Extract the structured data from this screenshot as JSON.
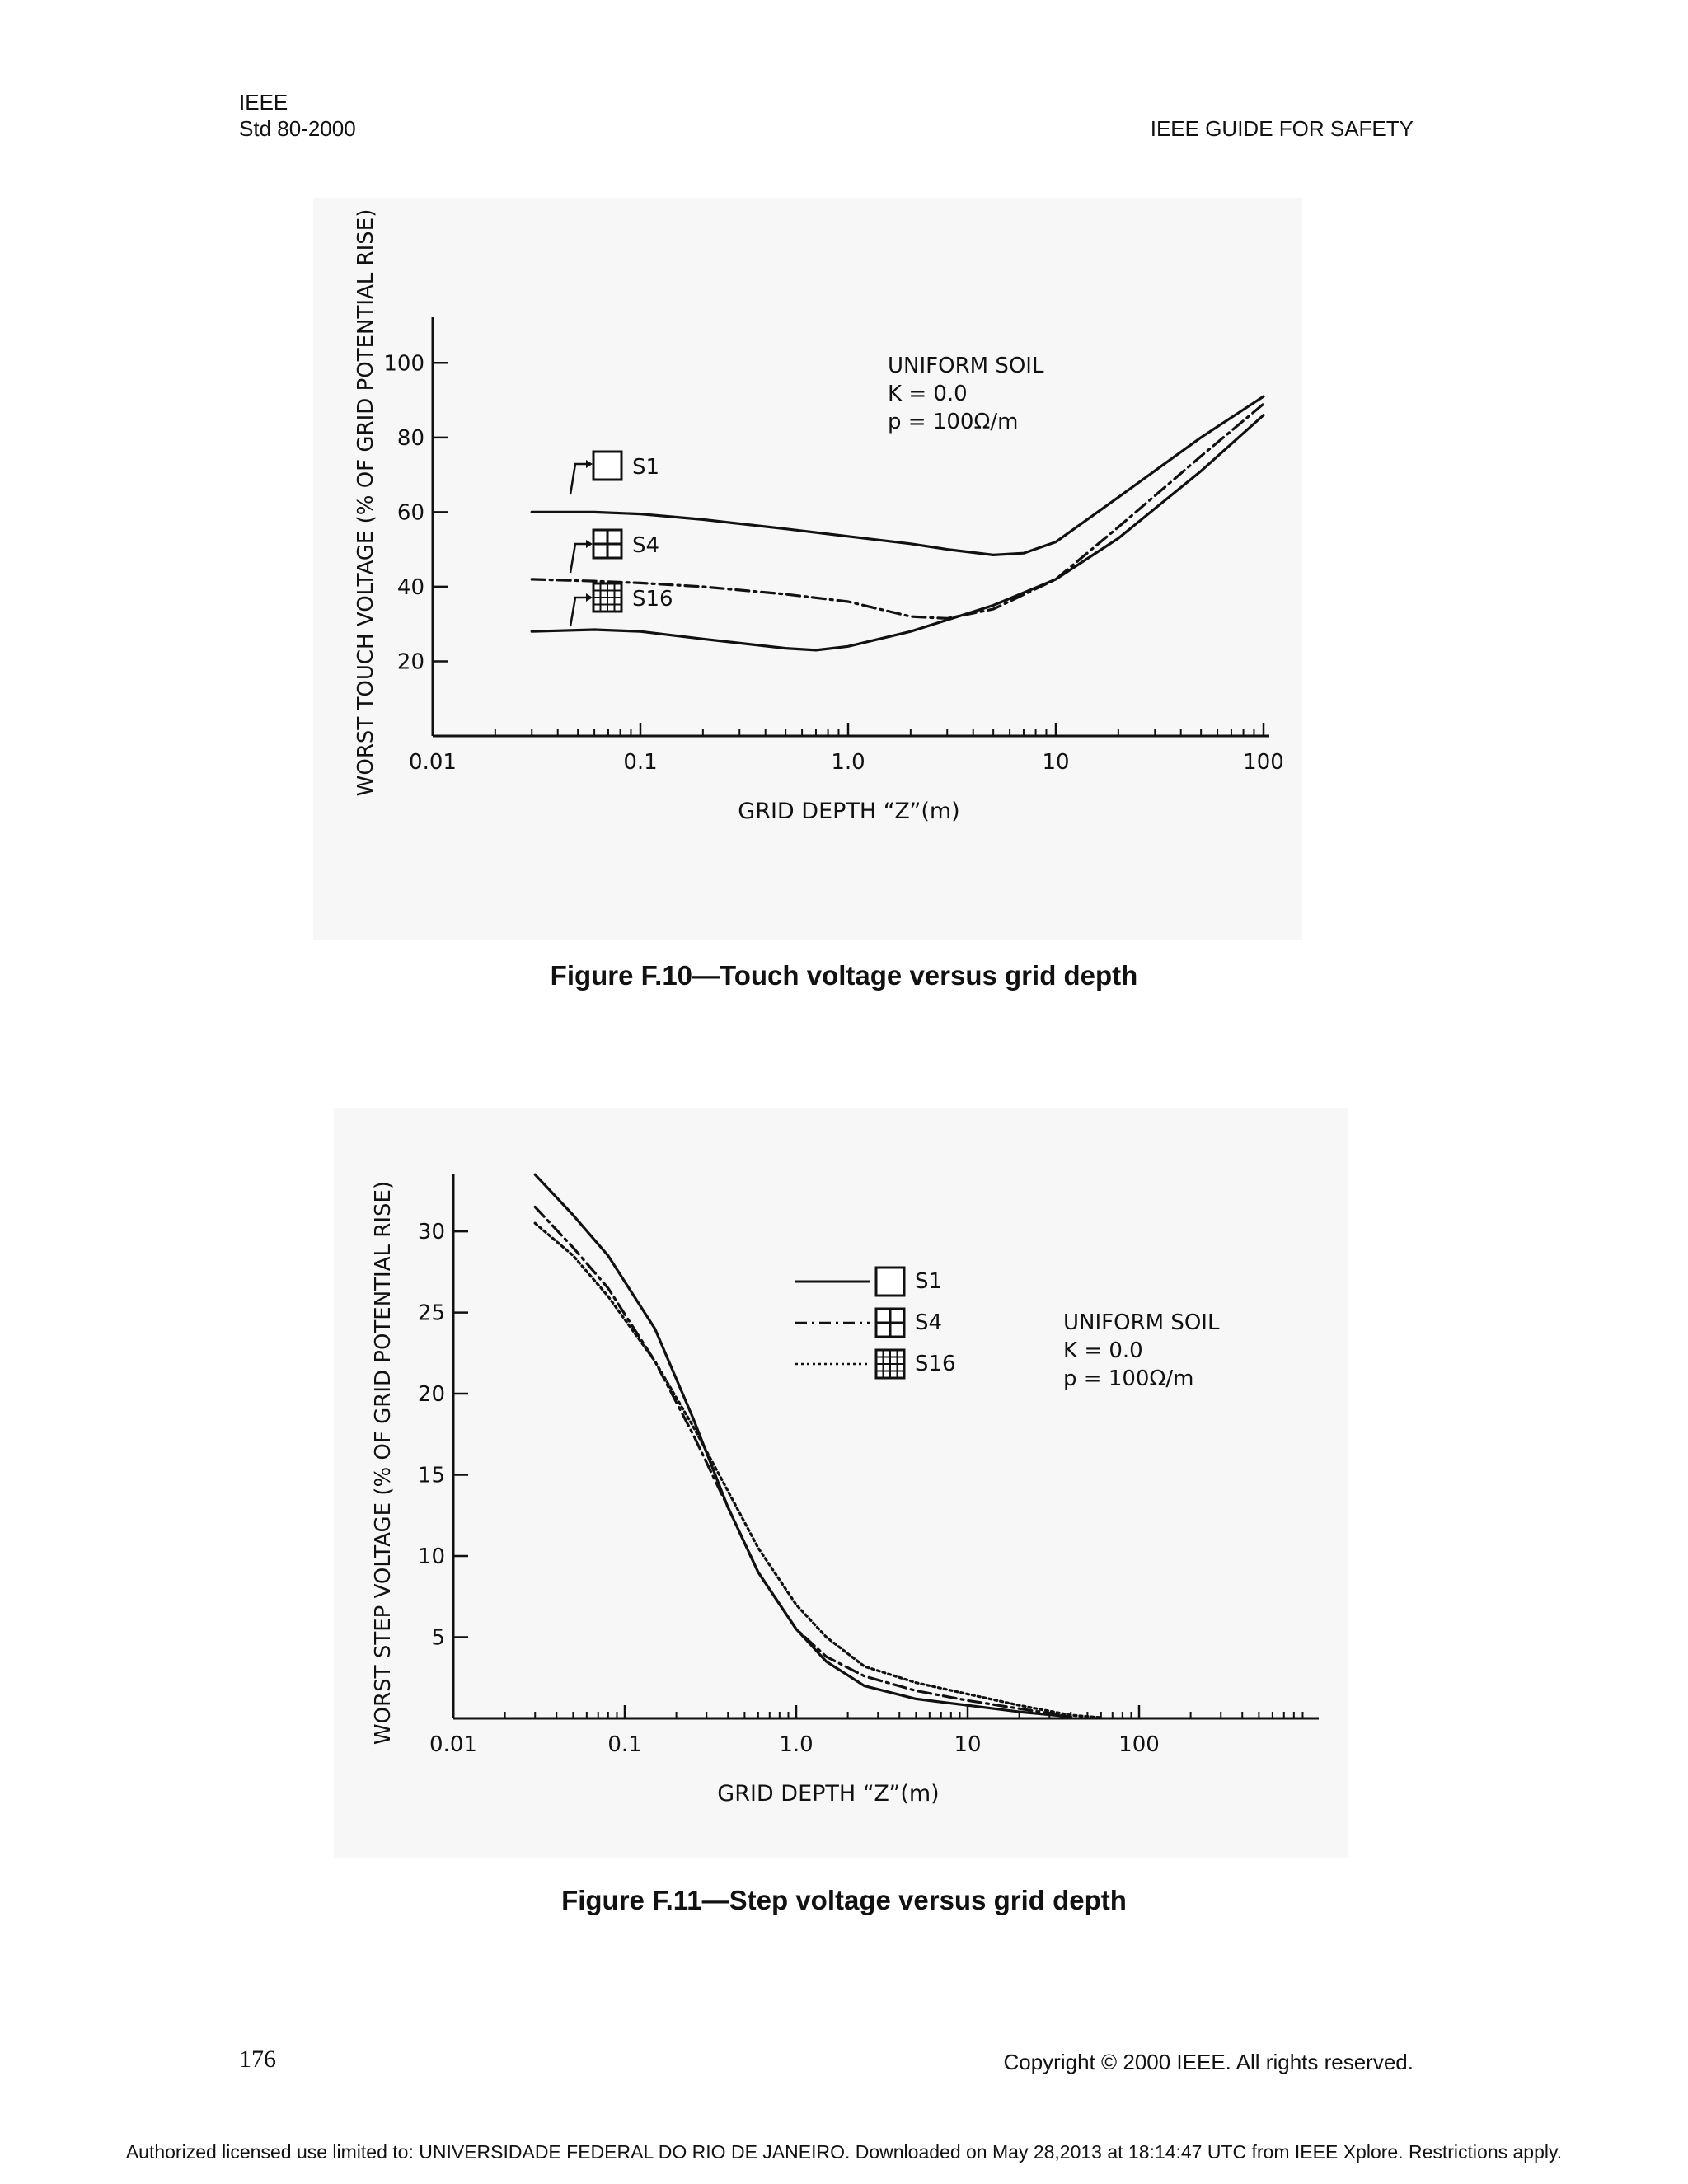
{
  "header": {
    "org": "IEEE",
    "std": "Std 80-2000",
    "title": "IEEE GUIDE FOR SAFETY"
  },
  "figures": [
    {
      "caption": "Figure F.10—Touch voltage versus grid depth",
      "annotation": [
        "UNIFORM SOIL",
        "K = 0.0",
        "p = 100Ω/m"
      ]
    },
    {
      "caption": "Figure F.11—Step voltage versus grid depth",
      "annotation": [
        "UNIFORM SOIL",
        "K = 0.0",
        "p = 100Ω/m"
      ]
    }
  ],
  "footer": {
    "page_number": "176",
    "copyright": "Copyright © 2000 IEEE. All rights reserved.",
    "authorization": "Authorized licensed use limited to: UNIVERSIDADE FEDERAL DO RIO DE JANEIRO. Downloaded on May 28,2013 at 18:14:47 UTC from IEEE Xplore.  Restrictions apply."
  },
  "chart_data": [
    {
      "type": "line",
      "xlabel": "GRID DEPTH “Z”(m)",
      "ylabel": "WORST TOUCH VOLTAGE (% OF GRID POTENTIAL RISE)",
      "x_scale": "log",
      "xlim": [
        0.01,
        100
      ],
      "ylim": [
        0,
        110
      ],
      "x_ticks": [
        0.01,
        0.1,
        1.0,
        10,
        100
      ],
      "x_tick_labels": [
        "0.01",
        "0.1",
        "1.0",
        "10",
        "100"
      ],
      "y_ticks": [
        20,
        40,
        60,
        80,
        100
      ],
      "y_tick_labels": [
        "20",
        "40",
        "60",
        "80",
        "100"
      ],
      "grid": false,
      "series": [
        {
          "name": "S1",
          "style": "solid",
          "x": [
            0.03,
            0.06,
            0.1,
            0.2,
            0.5,
            1.0,
            2.0,
            3.0,
            5.0,
            7.0,
            10,
            20,
            50,
            100
          ],
          "y": [
            60,
            60,
            59.5,
            58,
            55.5,
            53.5,
            51.5,
            50,
            48.5,
            49,
            52,
            64,
            80,
            91
          ]
        },
        {
          "name": "S4",
          "style": "dashdot",
          "x": [
            0.03,
            0.06,
            0.1,
            0.2,
            0.5,
            1.0,
            2.0,
            3.0,
            5.0,
            10,
            20,
            50,
            100
          ],
          "y": [
            42,
            41.5,
            41,
            40,
            38,
            36,
            32,
            31.5,
            34,
            42,
            56,
            75,
            89
          ]
        },
        {
          "name": "S16",
          "style": "solid",
          "x": [
            0.03,
            0.06,
            0.1,
            0.2,
            0.5,
            0.7,
            1.0,
            2.0,
            5.0,
            10,
            20,
            50,
            100
          ],
          "y": [
            28,
            28.5,
            28,
            26,
            23.5,
            23,
            24,
            28,
            35,
            42,
            53,
            71,
            86
          ]
        }
      ]
    },
    {
      "type": "line",
      "xlabel": "GRID DEPTH “Z”(m)",
      "ylabel": "WORST STEP VOLTAGE (% OF GRID POTENTIAL RISE)",
      "x_scale": "log",
      "xlim": [
        0.01,
        1000
      ],
      "ylim": [
        0,
        33
      ],
      "x_ticks": [
        0.01,
        0.1,
        1.0,
        10,
        100
      ],
      "x_tick_labels": [
        "0.01",
        "0.1",
        "1.0",
        "10",
        "100"
      ],
      "y_ticks": [
        5,
        10,
        15,
        20,
        25,
        30
      ],
      "y_tick_labels": [
        "5",
        "10",
        "15",
        "20",
        "25",
        "30"
      ],
      "legend": "top-center",
      "grid": false,
      "series": [
        {
          "name": "S1",
          "style": "solid",
          "x": [
            0.03,
            0.05,
            0.08,
            0.15,
            0.25,
            0.4,
            0.6,
            1.0,
            1.5,
            2.5,
            5,
            10,
            20,
            40
          ],
          "y": [
            33.5,
            31,
            28.5,
            24,
            18.5,
            13,
            9,
            5.5,
            3.5,
            2,
            1.2,
            0.8,
            0.4,
            0.1
          ]
        },
        {
          "name": "S4",
          "style": "dashdot",
          "x": [
            0.03,
            0.05,
            0.08,
            0.15,
            0.25,
            0.4,
            0.6,
            1.0,
            1.5,
            2.5,
            5,
            10,
            20,
            40
          ],
          "y": [
            31.5,
            29,
            26.5,
            22,
            17.5,
            13,
            9,
            5.5,
            3.8,
            2.6,
            1.7,
            1.1,
            0.6,
            0.1
          ]
        },
        {
          "name": "S16",
          "style": "dotted",
          "x": [
            0.03,
            0.05,
            0.08,
            0.15,
            0.25,
            0.4,
            0.6,
            1.0,
            1.5,
            2.5,
            5,
            10,
            20,
            40,
            60
          ],
          "y": [
            30.5,
            28.5,
            26,
            22,
            18,
            14,
            10.5,
            7,
            5,
            3.2,
            2.2,
            1.5,
            0.8,
            0.2,
            0.05
          ]
        }
      ]
    }
  ]
}
